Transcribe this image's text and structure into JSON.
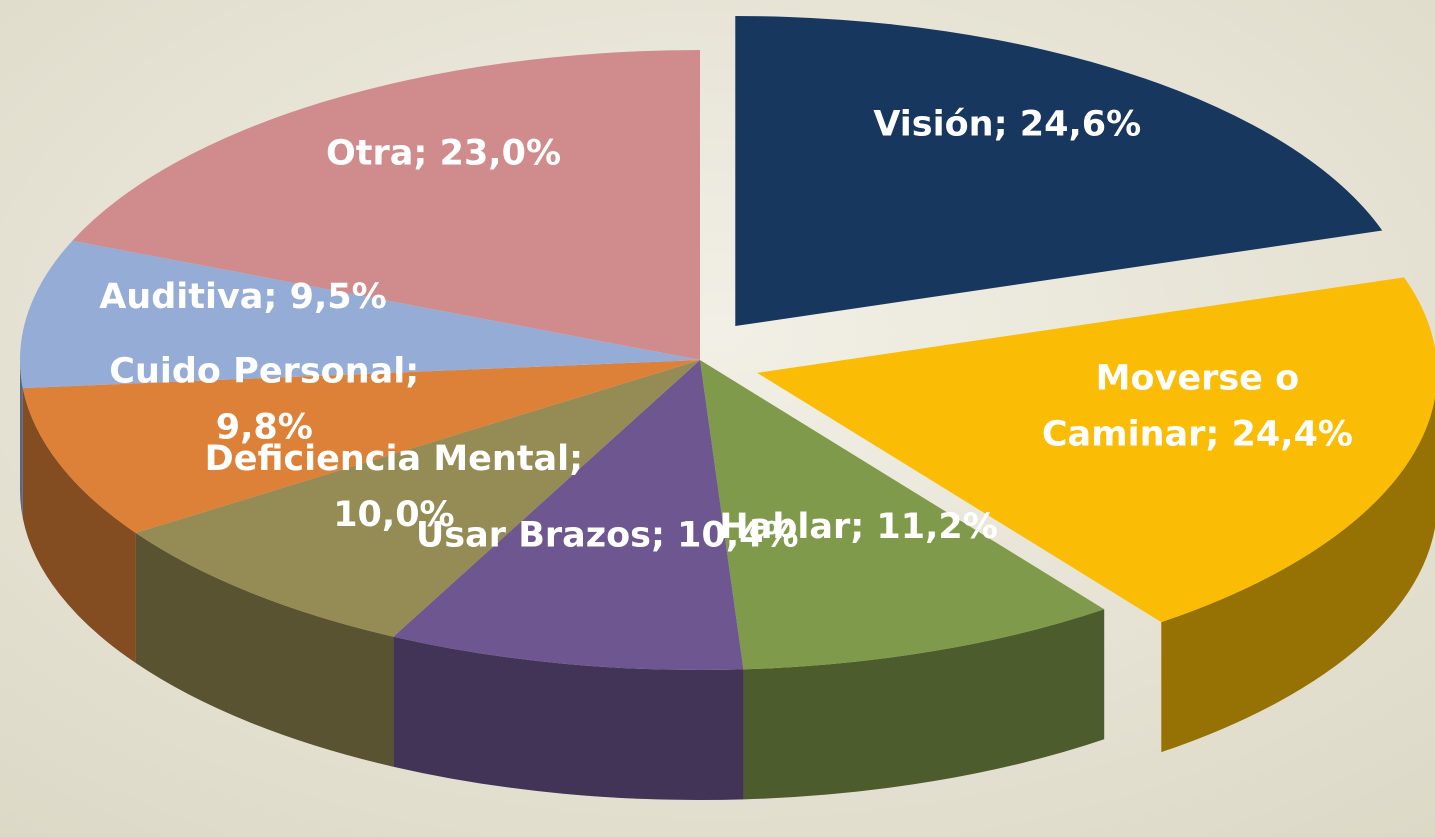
{
  "chart_data": {
    "type": "pie3d",
    "values": [
      24.6,
      24.4,
      11.2,
      10.4,
      10.0,
      9.8,
      9.5,
      23.0
    ],
    "value_labels": [
      [
        "Visión; 24,6%"
      ],
      [
        "Moverse o",
        "Caminar; 24,4%"
      ],
      [
        "Hablar; 11,2%"
      ],
      [
        "Usar Brazos; 10,4%"
      ],
      [
        "Deficiencia Mental;",
        "10,0%"
      ],
      [
        "Cuido Personal;",
        "9,8%"
      ],
      [
        "Auditiva; 9,5%"
      ],
      [
        "Otra; 23,0%"
      ]
    ],
    "colors": [
      "#17375e",
      "#fbbc05",
      "#7f9a4a",
      "#6e5790",
      "#958b54",
      "#dd8038",
      "#94acd6",
      "#d08c8c"
    ],
    "exploded": [
      true,
      true,
      false,
      false,
      false,
      false,
      false,
      false
    ]
  }
}
